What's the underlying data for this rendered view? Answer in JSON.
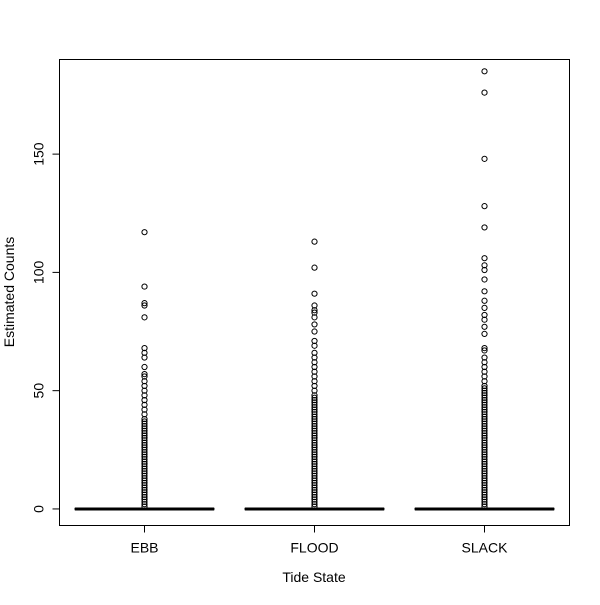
{
  "chart_data": {
    "type": "box",
    "title": "",
    "xlabel": "Tide State",
    "ylabel": "Estimated Counts",
    "categories": [
      "EBB",
      "FLOOD",
      "SLACK"
    ],
    "ylim": [
      -7,
      190
    ],
    "yticks": [
      0,
      50,
      100,
      150
    ],
    "boxes": [
      {
        "category": "EBB",
        "min": 0,
        "q1": 0,
        "median": 0,
        "q3": 0,
        "max": 0,
        "outliers": [
          1,
          2,
          3,
          4,
          5,
          6,
          7,
          8,
          9,
          10,
          11,
          12,
          13,
          14,
          15,
          16,
          17,
          18,
          19,
          20,
          21,
          22,
          23,
          24,
          25,
          26,
          27,
          28,
          29,
          30,
          31,
          32,
          33,
          34,
          35,
          36,
          37,
          38,
          40,
          42,
          44,
          46,
          48,
          50,
          52,
          54,
          56,
          57,
          60,
          64,
          66,
          68,
          81,
          86,
          87,
          94,
          117
        ]
      },
      {
        "category": "FLOOD",
        "min": 0,
        "q1": 0,
        "median": 0,
        "q3": 0,
        "max": 0,
        "outliers": [
          1,
          2,
          3,
          4,
          5,
          6,
          7,
          8,
          9,
          10,
          11,
          12,
          13,
          14,
          15,
          16,
          17,
          18,
          19,
          20,
          21,
          22,
          23,
          24,
          25,
          26,
          27,
          28,
          29,
          30,
          31,
          32,
          33,
          34,
          35,
          36,
          37,
          38,
          39,
          40,
          41,
          42,
          43,
          44,
          45,
          46,
          47,
          48,
          50,
          52,
          54,
          56,
          58,
          60,
          62,
          64,
          66,
          69,
          71,
          75,
          78,
          81,
          83,
          84,
          86,
          91,
          102,
          113
        ]
      },
      {
        "category": "SLACK",
        "min": 0,
        "q1": 0,
        "median": 0,
        "q3": 0,
        "max": 0,
        "outliers": [
          1,
          2,
          3,
          4,
          5,
          6,
          7,
          8,
          9,
          10,
          11,
          12,
          13,
          14,
          15,
          16,
          17,
          18,
          19,
          20,
          21,
          22,
          23,
          24,
          25,
          26,
          27,
          28,
          29,
          30,
          31,
          32,
          33,
          34,
          35,
          36,
          37,
          38,
          39,
          40,
          41,
          42,
          43,
          44,
          45,
          46,
          47,
          48,
          49,
          50,
          51,
          52,
          54,
          56,
          58,
          60,
          62,
          64,
          67,
          68,
          74,
          77,
          80,
          82,
          85,
          88,
          92,
          97,
          101,
          103,
          106,
          119,
          128,
          148,
          176,
          185
        ]
      }
    ]
  }
}
